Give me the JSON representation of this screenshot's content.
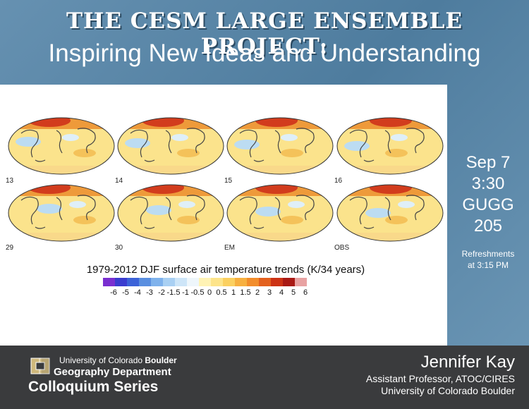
{
  "header": {
    "title": "THE CESM LARGE ENSEMBLE PROJECT:",
    "subtitle": "Inspiring New Ideas and Understanding"
  },
  "figure": {
    "maps": [
      {
        "label": "13"
      },
      {
        "label": "14"
      },
      {
        "label": "15"
      },
      {
        "label": "16"
      },
      {
        "label": "29"
      },
      {
        "label": "30"
      },
      {
        "label": "EM"
      },
      {
        "label": "OBS"
      }
    ],
    "caption": "1979-2012 DJF surface air temperature trends (K/34 years)",
    "colorbar": {
      "colors": [
        "#7a2fd0",
        "#3a3ccf",
        "#3c63d8",
        "#5a8fe0",
        "#7fb2ec",
        "#a9d0f3",
        "#cde5f8",
        "#eef6fb",
        "#fff3b5",
        "#fde48a",
        "#fbd060",
        "#f7b040",
        "#f28d2c",
        "#e3611e",
        "#cc3315",
        "#a91a15",
        "#e8a2a2"
      ],
      "ticks": [
        "-6",
        "-5",
        "-4",
        "-3",
        "-2",
        "-1.5",
        "-1",
        "-0.5",
        "0",
        "0.5",
        "1",
        "1.5",
        "2",
        "3",
        "4",
        "5",
        "6"
      ]
    }
  },
  "event": {
    "date": "Sep 7",
    "time": "3:30",
    "building": "GUGG",
    "room": "205",
    "refreshments_line1": "Refreshments",
    "refreshments_line2": "at 3:15 PM"
  },
  "footer": {
    "university_prefix": "University of Colorado ",
    "university_campus": "Boulder",
    "department": "Geography Department",
    "series": "Colloquium Series",
    "speaker_name": "Jennifer Kay",
    "speaker_role": "Assistant Professor, ATOC/CIRES",
    "speaker_affiliation": "University of Colorado Boulder"
  }
}
